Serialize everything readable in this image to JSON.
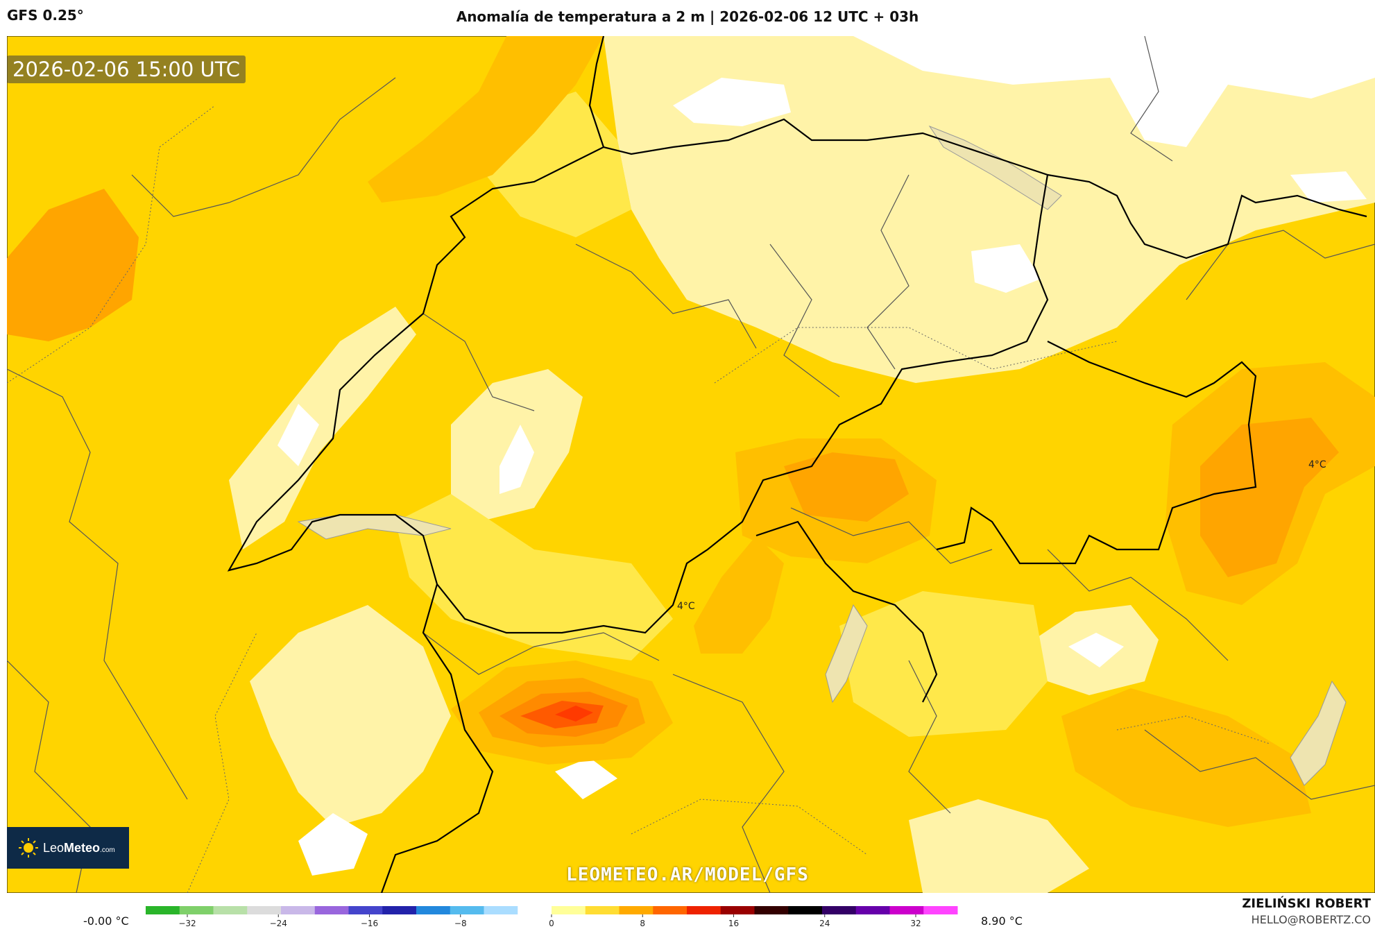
{
  "header": {
    "model": "GFS 0.25°",
    "title": "Anomalía de temperatura a 2 m | 2026-02-06 12 UTC + 03h"
  },
  "map": {
    "valid_time": "2026-02-06 15:00 UTC",
    "watermark": "LEOMETEO.AR/MODEL/GFS",
    "contour_labels": [
      "4°C",
      "4°C"
    ]
  },
  "logo": {
    "brand_light": "Leo",
    "brand_bold": "Meteo",
    "suffix": ".com",
    "icon": "sun-icon"
  },
  "legend": {
    "min_label": "-0.00 °C",
    "max_label": "8.90 °C",
    "ticks": [
      "−32",
      "−24",
      "−16",
      "−8",
      "0",
      "8",
      "16",
      "24",
      "32"
    ],
    "colors": [
      "#2ab52a",
      "#7fd06a",
      "#b8e0a8",
      "#dcdcdc",
      "#c9b8e8",
      "#9966dd",
      "#4444cc",
      "#2222aa",
      "#2288dd",
      "#55bbee",
      "#aaddff",
      "#ffffff",
      "#ffff99",
      "#ffdd33",
      "#ffaa00",
      "#ff6600",
      "#ee2200",
      "#990000",
      "#330000",
      "#000000",
      "#330066",
      "#6600aa",
      "#cc00cc",
      "#ff44ff"
    ]
  },
  "credit": {
    "name": "ZIELIŃSKI ROBERT",
    "email": "HELLO@ROBERTZ.CO"
  },
  "fill_colors": {
    "white": "#ffffff",
    "pale": "#fff3a8",
    "light": "#ffe84a",
    "mid": "#ffd400",
    "deep": "#ffbf00",
    "orange": "#ffa500",
    "dark_orange": "#ff8a00",
    "red": "#ff5a00",
    "hot": "#ff3a00"
  }
}
